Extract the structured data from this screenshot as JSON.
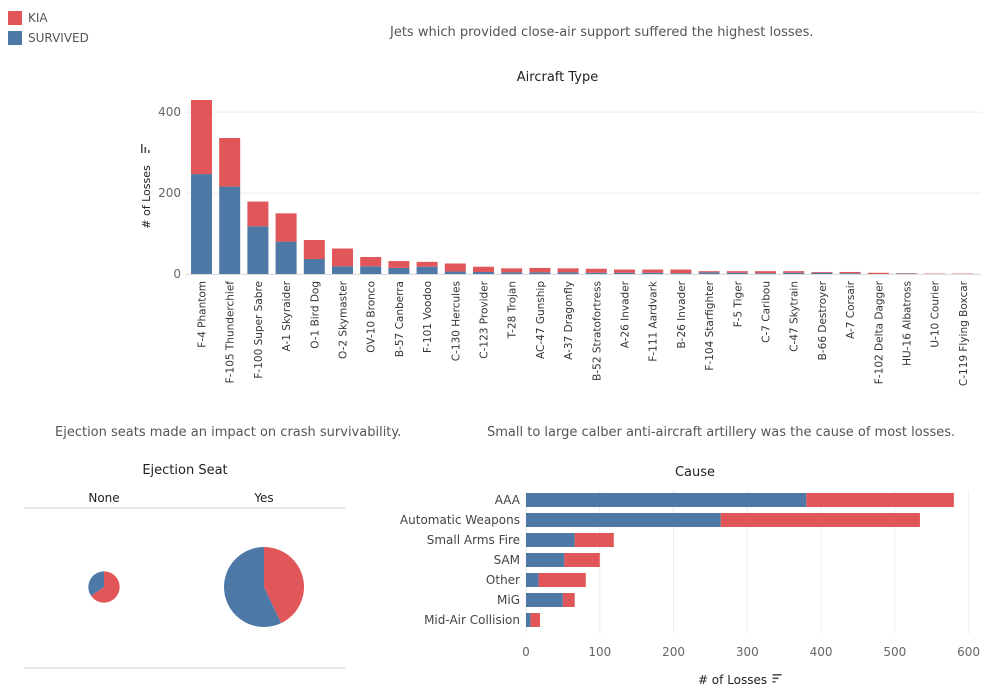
{
  "colors": {
    "kia": "#E15759",
    "survived": "#4E79A7",
    "grid": "#eeeeee",
    "axis": "#888888"
  },
  "legend": [
    {
      "label": "KIA",
      "color": "#E15759"
    },
    {
      "label": "SURVIVED",
      "color": "#4E79A7"
    }
  ],
  "captions": {
    "top": "Jets which provided close-air support suffered the highest losses.",
    "ejection": "Ejection seats made an impact on crash survivability.",
    "cause": "Small to large calber anti-aircraft artillery was the cause of most losses."
  },
  "sort_icon": "sort-descending-icon",
  "chart_data": [
    {
      "type": "bar",
      "stacked": true,
      "title": "Aircraft Type",
      "ylabel": "# of Losses",
      "ylim": [
        0,
        430
      ],
      "yticks": [
        0,
        200,
        400
      ],
      "categories": [
        "F-4 Phantom",
        "F-105 Thunderchief",
        "F-100 Super Sabre",
        "A-1 Skyraider",
        "O-1 Bird Dog",
        "O-2 Skymaster",
        "OV-10 Bronco",
        "B-57 Canberra",
        "F-101 Voodoo",
        "C-130 Hercules",
        "C-123 Provider",
        "T-28 Trojan",
        "AC-47 Gunship",
        "A-37 Dragonfly",
        "B-52 Stratofortress",
        "A-26 Invader",
        "F-111 Aardvark",
        "B-26 Invader",
        "F-104 Starfighter",
        "F-5 Tiger",
        "C-7 Caribou",
        "C-47 Skytrain",
        "B-66 Destroyer",
        "A-7 Corsair",
        "F-102 Delta Dagger",
        "HU-16 Albatross",
        "U-10 Courier",
        "C-119 Flying Boxcar"
      ],
      "series": [
        {
          "name": "SURVIVED",
          "values": [
            247,
            216,
            118,
            80,
            37,
            19,
            19,
            15,
            18,
            6,
            5,
            4,
            4,
            4,
            3,
            3,
            3,
            2,
            4,
            3,
            2,
            3,
            3,
            2,
            0,
            1,
            0,
            0
          ]
        },
        {
          "name": "KIA",
          "values": [
            183,
            120,
            61,
            70,
            47,
            44,
            23,
            17,
            12,
            20,
            13,
            10,
            11,
            10,
            10,
            8,
            8,
            9,
            3,
            4,
            5,
            4,
            2,
            3,
            3,
            1,
            1,
            1
          ]
        }
      ]
    },
    {
      "type": "pie",
      "title": "Ejection Seat",
      "panels": [
        {
          "label": "None",
          "total": 52,
          "slices": [
            {
              "name": "KIA",
              "value": 34
            },
            {
              "name": "SURVIVED",
              "value": 18
            }
          ]
        },
        {
          "label": "Yes",
          "total": 340,
          "slices": [
            {
              "name": "KIA",
              "value": 146
            },
            {
              "name": "SURVIVED",
              "value": 194
            }
          ]
        }
      ]
    },
    {
      "type": "bar",
      "orientation": "horizontal",
      "stacked": true,
      "title": "Cause",
      "xlabel": "# of Losses",
      "xlim": [
        0,
        610
      ],
      "xticks": [
        0,
        100,
        200,
        300,
        400,
        500,
        600
      ],
      "categories": [
        "AAA",
        "Automatic Weapons",
        "Small Arms Fire",
        "SAM",
        "Other",
        "MiG",
        "Mid-Air Collision"
      ],
      "series": [
        {
          "name": "SURVIVED",
          "values": [
            380,
            264,
            66,
            52,
            17,
            50,
            6
          ]
        },
        {
          "name": "KIA",
          "values": [
            200,
            270,
            53,
            48,
            64,
            16,
            13
          ]
        }
      ]
    }
  ]
}
